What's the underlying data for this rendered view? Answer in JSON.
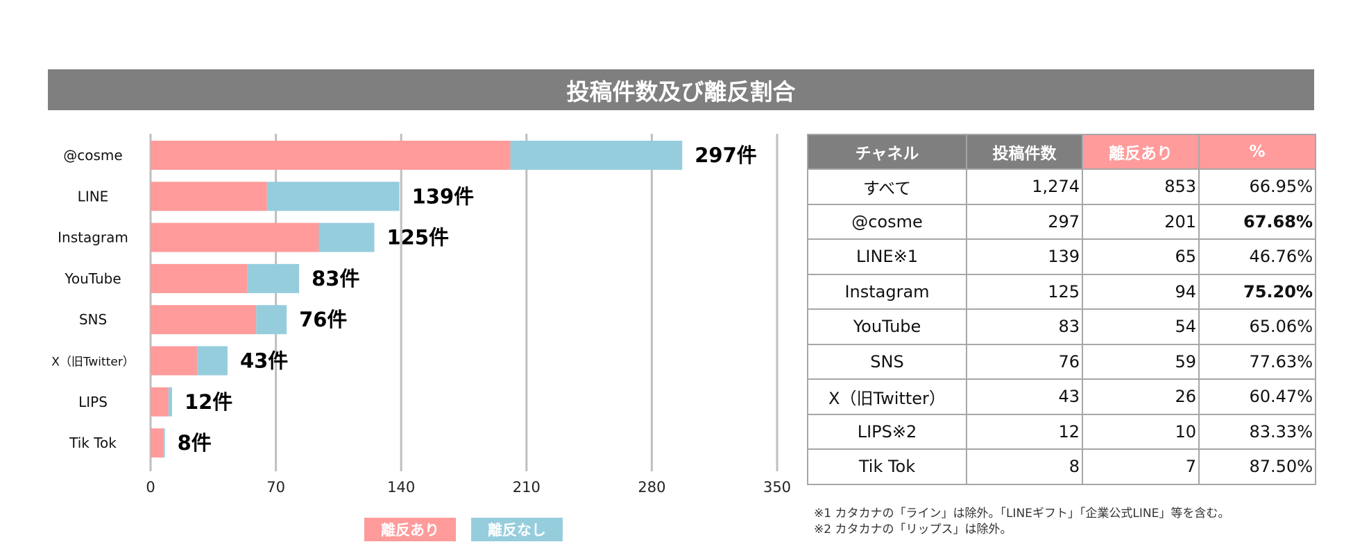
{
  "title": "投稿件数及び離反割合",
  "colors": {
    "churn": "#ff9b9b",
    "no_churn": "#96cddd",
    "header_gray": "#7f7f7f",
    "grid": "#bfbfbf"
  },
  "chart_data": {
    "type": "bar",
    "orientation": "horizontal",
    "stacked": true,
    "categories": [
      "@cosme",
      "LINE",
      "Instagram",
      "YouTube",
      "SNS",
      "X（旧Twitter）",
      "LIPS",
      "Tik Tok"
    ],
    "series": [
      {
        "name": "離反あり",
        "values": [
          201,
          65,
          94,
          54,
          59,
          26,
          10,
          7
        ]
      },
      {
        "name": "離反なし",
        "values": [
          96,
          74,
          31,
          29,
          17,
          17,
          2,
          1
        ]
      }
    ],
    "data_labels": [
      "297件",
      "139件",
      "125件",
      "83件",
      "76件",
      "43件",
      "12件",
      "8件"
    ],
    "xlim": [
      0,
      350
    ],
    "xticks": [
      0,
      70,
      140,
      210,
      280,
      350
    ],
    "xtick_labels": [
      "0",
      "70",
      "140",
      "210",
      "280",
      "350"
    ],
    "grid": true,
    "legend_position": "bottom"
  },
  "legend": {
    "churn": "離反あり",
    "no_churn": "離反なし"
  },
  "table": {
    "headers": [
      "チャネル",
      "投稿件数",
      "離反あり",
      "%"
    ],
    "rows": [
      {
        "channel": "すべて",
        "posts": "1,274",
        "churn": "853",
        "pct": "66.95%",
        "bold": false
      },
      {
        "channel": "@cosme",
        "posts": "297",
        "churn": "201",
        "pct": "67.68%",
        "bold": true
      },
      {
        "channel": "LINE※1",
        "posts": "139",
        "churn": "65",
        "pct": "46.76%",
        "bold": false
      },
      {
        "channel": "Instagram",
        "posts": "125",
        "churn": "94",
        "pct": "75.20%",
        "bold": true
      },
      {
        "channel": "YouTube",
        "posts": "83",
        "churn": "54",
        "pct": "65.06%",
        "bold": false
      },
      {
        "channel": "SNS",
        "posts": "76",
        "churn": "59",
        "pct": "77.63%",
        "bold": false
      },
      {
        "channel": "X（旧Twitter）",
        "posts": "43",
        "churn": "26",
        "pct": "60.47%",
        "bold": false
      },
      {
        "channel": "LIPS※2",
        "posts": "12",
        "churn": "10",
        "pct": "83.33%",
        "bold": false
      },
      {
        "channel": "Tik Tok",
        "posts": "8",
        "churn": "7",
        "pct": "87.50%",
        "bold": false
      }
    ]
  },
  "notes": [
    "※1 カタカナの「ライン」は除外。「LINEギフト」「企業公式LINE」等を含む。",
    "※2 カタカナの「リップス」は除外。"
  ]
}
